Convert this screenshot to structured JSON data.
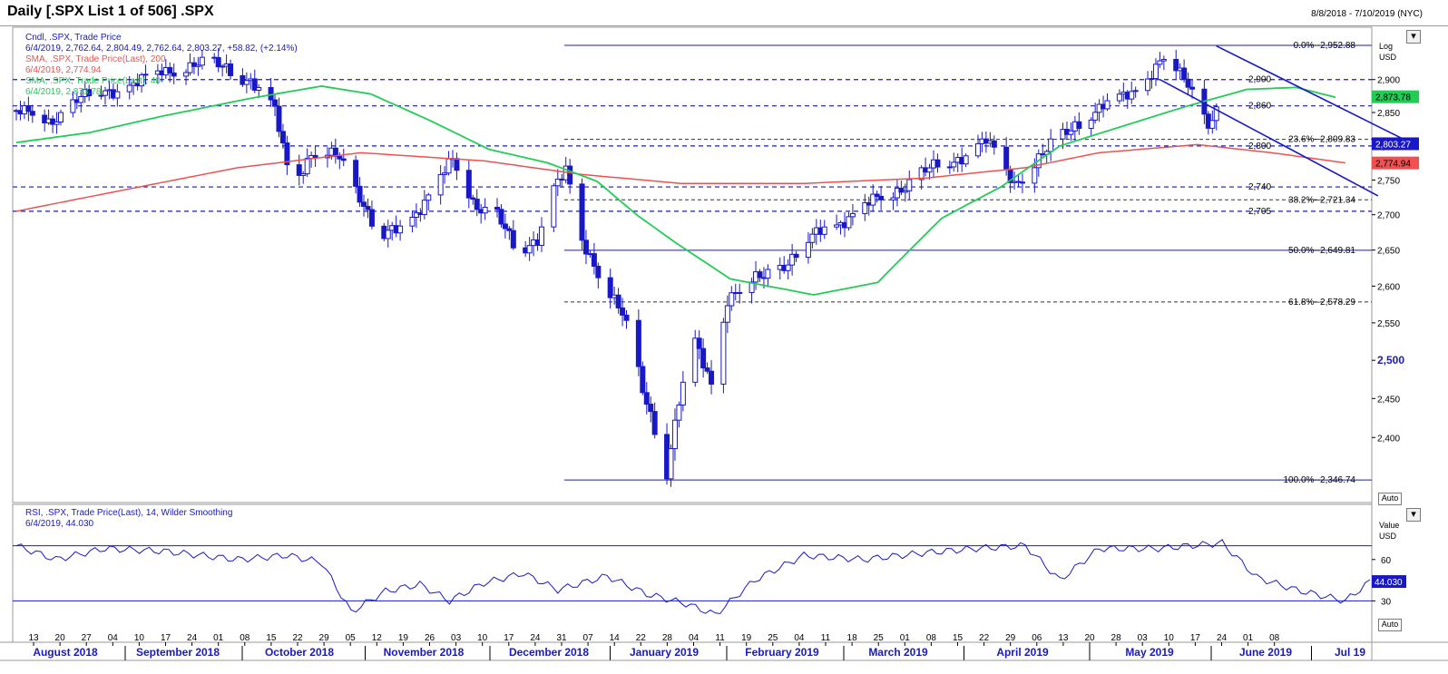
{
  "window": {
    "title": "Daily [.SPX List 1 of 506] .SPX",
    "date_range": "8/8/2018 - 7/10/2019 (NYC)"
  },
  "price_panel": {
    "scale_labels": [
      "Log",
      "USD"
    ],
    "auto_label": "Auto",
    "legend": [
      {
        "text": "Cndl, .SPX, Trade Price",
        "color": "#1818c8"
      },
      {
        "text": "6/4/2019, 2,762.64, 2,804.49, 2,762.64, 2,803.27, +58.82, (+2.14%)",
        "color": "#1818c8"
      },
      {
        "text": "SMA, .SPX, Trade Price(Last), 200",
        "color": "#f05050"
      },
      {
        "text": "6/4/2019, 2,774.94",
        "color": "#f05050"
      },
      {
        "text": "SMA, .SPX, Trade Price(Last), 40",
        "color": "#22cc55"
      },
      {
        "text": "6/4/2019, 2,873.78",
        "color": "#22cc55"
      }
    ],
    "y_ticks": [
      {
        "v": 2900,
        "t": "2,900"
      },
      {
        "v": 2850,
        "t": "2,850"
      },
      {
        "v": 2800,
        "t": "2,800"
      },
      {
        "v": 2750,
        "t": "2,750"
      },
      {
        "v": 2700,
        "t": "2,700"
      },
      {
        "v": 2650,
        "t": "2,650"
      },
      {
        "v": 2600,
        "t": "2,600"
      },
      {
        "v": 2550,
        "t": "2,550"
      },
      {
        "v": 2500,
        "t": "2,500"
      },
      {
        "v": 2450,
        "t": "2,450"
      },
      {
        "v": 2400,
        "t": "2,400"
      }
    ],
    "horizontal_levels": [
      {
        "v": 2900,
        "t": "2,900"
      },
      {
        "v": 2860,
        "t": "2,860"
      },
      {
        "v": 2800,
        "t": "2,800"
      },
      {
        "v": 2740,
        "t": "2,740"
      },
      {
        "v": 2705,
        "t": "2,705"
      }
    ],
    "fib_levels": [
      {
        "v": 2952.88,
        "t": "0.0%--2,952.88",
        "style": "solid"
      },
      {
        "v": 2809.83,
        "t": "23.6%--2,809.83",
        "style": "dash"
      },
      {
        "v": 2721.34,
        "t": "38.2%--2,721.34",
        "style": "dash"
      },
      {
        "v": 2649.81,
        "t": "50.0%--2,649.81",
        "style": "solid"
      },
      {
        "v": 2578.29,
        "t": "61.8%--2,578.29",
        "style": "dash"
      },
      {
        "v": 2346.74,
        "t": "100.0%--2,346.74",
        "style": "solid"
      }
    ],
    "badges": [
      {
        "v": 2873.78,
        "t": "2,873.78",
        "bg": "#22cc55",
        "fg": "#000000"
      },
      {
        "v": 2803.27,
        "t": "2,803.27",
        "bg": "#1818c8",
        "fg": "#ffffff"
      },
      {
        "v": 2774.94,
        "t": "2,774.94",
        "bg": "#f05050",
        "fg": "#000000"
      }
    ]
  },
  "rsi_panel": {
    "legend": [
      {
        "text": "RSI, .SPX, Trade Price(Last), 14, Wilder Smoothing",
        "color": "#1818c8"
      },
      {
        "text": "6/4/2019, 44.030",
        "color": "#1818c8"
      }
    ],
    "scale_labels": [
      "Value",
      "USD"
    ],
    "auto_label": "Auto",
    "y_ticks": [
      {
        "v": 60,
        "t": "60"
      },
      {
        "v": 30,
        "t": "30"
      }
    ],
    "levels": [
      70,
      30
    ],
    "badge": {
      "v": 44.03,
      "t": "44.030"
    }
  },
  "x_axis": {
    "day_ticks": [
      "13",
      "20",
      "27",
      "04",
      "10",
      "17",
      "24",
      "01",
      "08",
      "15",
      "22",
      "29",
      "05",
      "12",
      "19",
      "26",
      "03",
      "10",
      "17",
      "24",
      "31",
      "07",
      "14",
      "22",
      "28",
      "04",
      "11",
      "19",
      "25",
      "04",
      "11",
      "18",
      "25",
      "01",
      "08",
      "15",
      "22",
      "29",
      "06",
      "13",
      "20",
      "28",
      "03",
      "10",
      "17",
      "24",
      "01",
      "08"
    ],
    "months": [
      "August 2018",
      "September 2018",
      "October 2018",
      "November 2018",
      "December 2018",
      "January 2019",
      "February 2019",
      "March 2019",
      "April 2019",
      "May 2019",
      "June 2019",
      "Jul 19"
    ]
  },
  "chart_data": {
    "type": "candlestick",
    "title": "Daily [.SPX List 1 of 506] .SPX",
    "date_range": "8/8/2018 - 7/10/2019 (NYC)",
    "y_scale": "log",
    "ylim": [
      2330,
      2970
    ],
    "rsi_ylim": [
      0,
      100
    ],
    "series": [
      {
        "name": "Cndl, .SPX, Trade Price",
        "last": {
          "date": "6/4/2019",
          "open": 2762.64,
          "high": 2804.49,
          "low": 2762.64,
          "close": 2803.27,
          "change": 58.82,
          "change_pct": 2.14
        }
      },
      {
        "name": "SMA, .SPX, Trade Price(Last), 200",
        "last": {
          "date": "6/4/2019",
          "value": 2774.94
        },
        "anchors": [
          [
            0,
            2705
          ],
          [
            25,
            2740
          ],
          [
            45,
            2768
          ],
          [
            70,
            2790
          ],
          [
            95,
            2778
          ],
          [
            115,
            2758
          ],
          [
            135,
            2745
          ],
          [
            160,
            2745
          ],
          [
            185,
            2753
          ],
          [
            205,
            2768
          ],
          [
            220,
            2790
          ],
          [
            240,
            2802
          ],
          [
            255,
            2790
          ],
          [
            270,
            2775
          ]
        ]
      },
      {
        "name": "SMA, .SPX, Trade Price(Last), 40",
        "last": {
          "date": "6/4/2019",
          "value": 2873.78
        },
        "anchors": [
          [
            0,
            2805
          ],
          [
            15,
            2820
          ],
          [
            30,
            2845
          ],
          [
            48,
            2872
          ],
          [
            62,
            2890
          ],
          [
            72,
            2878
          ],
          [
            84,
            2838
          ],
          [
            96,
            2795
          ],
          [
            108,
            2775
          ],
          [
            118,
            2748
          ],
          [
            126,
            2700
          ],
          [
            134,
            2660
          ],
          [
            145,
            2610
          ],
          [
            162,
            2588
          ],
          [
            175,
            2605
          ],
          [
            188,
            2695
          ],
          [
            200,
            2740
          ],
          [
            212,
            2800
          ],
          [
            225,
            2830
          ],
          [
            238,
            2860
          ],
          [
            250,
            2885
          ],
          [
            260,
            2888
          ],
          [
            268,
            2873
          ]
        ]
      },
      {
        "name": "RSI, .SPX, Trade Price(Last), 14, Wilder Smoothing",
        "last": {
          "date": "6/4/2019",
          "value": 44.03
        },
        "anchors": [
          [
            0,
            70
          ],
          [
            8,
            60
          ],
          [
            18,
            68
          ],
          [
            30,
            66
          ],
          [
            45,
            60
          ],
          [
            55,
            63
          ],
          [
            62,
            58
          ],
          [
            68,
            22
          ],
          [
            75,
            37
          ],
          [
            82,
            42
          ],
          [
            88,
            30
          ],
          [
            95,
            43
          ],
          [
            103,
            50
          ],
          [
            110,
            38
          ],
          [
            120,
            48
          ],
          [
            128,
            35
          ],
          [
            136,
            28
          ],
          [
            142,
            20
          ],
          [
            150,
            45
          ],
          [
            160,
            63
          ],
          [
            172,
            60
          ],
          [
            185,
            65
          ],
          [
            195,
            68
          ],
          [
            205,
            70
          ],
          [
            212,
            45
          ],
          [
            220,
            68
          ],
          [
            232,
            68
          ],
          [
            245,
            72
          ],
          [
            252,
            47
          ],
          [
            260,
            38
          ],
          [
            270,
            30
          ],
          [
            275,
            44
          ]
        ]
      }
    ],
    "candle_path": [
      [
        0,
        2853
      ],
      [
        8,
        2835
      ],
      [
        15,
        2870
      ],
      [
        25,
        2885
      ],
      [
        36,
        2910
      ],
      [
        44,
        2925
      ],
      [
        52,
        2918
      ],
      [
        58,
        2900
      ],
      [
        64,
        2850
      ],
      [
        68,
        2745
      ],
      [
        73,
        2790
      ],
      [
        80,
        2780
      ],
      [
        86,
        2720
      ],
      [
        90,
        2665
      ],
      [
        96,
        2680
      ],
      [
        103,
        2740
      ],
      [
        108,
        2775
      ],
      [
        113,
        2720
      ],
      [
        119,
        2700
      ],
      [
        124,
        2640
      ],
      [
        129,
        2670
      ],
      [
        133,
        2740
      ],
      [
        136,
        2760
      ],
      [
        140,
        2660
      ],
      [
        145,
        2615
      ],
      [
        150,
        2560
      ],
      [
        155,
        2460
      ],
      [
        158,
        2415
      ],
      [
        161,
        2360
      ],
      [
        164,
        2446
      ],
      [
        168,
        2520
      ],
      [
        172,
        2470
      ],
      [
        176,
        2585
      ],
      [
        184,
        2610
      ],
      [
        192,
        2640
      ],
      [
        200,
        2680
      ],
      [
        210,
        2710
      ],
      [
        220,
        2745
      ],
      [
        230,
        2775
      ],
      [
        240,
        2805
      ],
      [
        247,
        2748
      ],
      [
        255,
        2790
      ],
      [
        262,
        2835
      ],
      [
        270,
        2860
      ],
      [
        278,
        2890
      ],
      [
        284,
        2932
      ],
      [
        290,
        2895
      ],
      [
        295,
        2835
      ],
      [
        300,
        2875
      ],
      [
        305,
        2840
      ],
      [
        310,
        2822
      ],
      [
        315,
        2810
      ],
      [
        320,
        2785
      ],
      [
        324,
        2795
      ],
      [
        328,
        2752
      ],
      [
        332,
        2745
      ],
      [
        335,
        2803
      ]
    ],
    "channel_upper": [
      [
        297,
        2952
      ],
      [
        345,
        2805
      ]
    ],
    "channel_lower": [
      [
        283,
        2900
      ],
      [
        337,
        2727
      ]
    ],
    "fib_levels": [
      2952.88,
      2809.83,
      2721.34,
      2649.81,
      2578.29,
      2346.74
    ],
    "support_resistance": [
      2900,
      2860,
      2800,
      2740,
      2705
    ]
  }
}
